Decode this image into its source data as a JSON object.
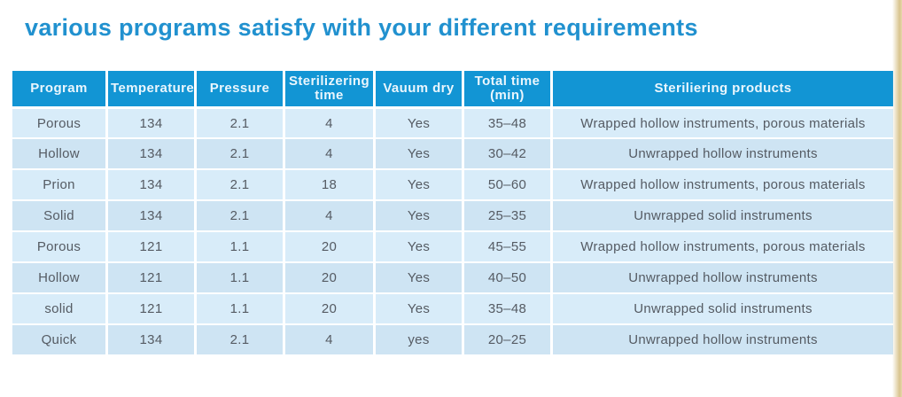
{
  "page": {
    "title": "various programs satisfy with your different requirements"
  },
  "colors": {
    "title_blue": "#2191cf",
    "header_bg": "#1295d4",
    "header_text": "#eaf6fd",
    "row_bg_light": "#d8ecf9",
    "row_bg_dark": "#cee4f3",
    "body_text": "#555b63",
    "separator": "#ffffff",
    "edge_strip_tan": "#d9c48e"
  },
  "table": {
    "columns": [
      {
        "key": "program",
        "label": "Program"
      },
      {
        "key": "temperature",
        "label": "Temperature"
      },
      {
        "key": "pressure",
        "label": "Pressure"
      },
      {
        "key": "sterilizing_time",
        "label": "Sterilizering time"
      },
      {
        "key": "vacuum_dry",
        "label": "Vauum dry"
      },
      {
        "key": "total_time",
        "label": "Total time (min)"
      },
      {
        "key": "products",
        "label": "Steriliering products"
      }
    ],
    "rows": [
      [
        "Porous",
        "134",
        "2.1",
        "4",
        "Yes",
        "35–48",
        "Wrapped hollow instruments, porous materials"
      ],
      [
        "Hollow",
        "134",
        "2.1",
        "4",
        "Yes",
        "30–42",
        "Unwrapped hollow instruments"
      ],
      [
        "Prion",
        "134",
        "2.1",
        "18",
        "Yes",
        "50–60",
        "Wrapped hollow instruments, porous materials"
      ],
      [
        "Solid",
        "134",
        "2.1",
        "4",
        "Yes",
        "25–35",
        "Unwrapped solid instruments"
      ],
      [
        "Porous",
        "121",
        "1.1",
        "20",
        "Yes",
        "45–55",
        "Wrapped hollow instruments, porous materials"
      ],
      [
        "Hollow",
        "121",
        "1.1",
        "20",
        "Yes",
        "40–50",
        "Unwrapped hollow instruments"
      ],
      [
        "solid",
        "121",
        "1.1",
        "20",
        "Yes",
        "35–48",
        "Unwrapped solid instruments"
      ],
      [
        "Quick",
        "134",
        "2.1",
        "4",
        "yes",
        "20–25",
        "Unwrapped hollow instruments"
      ]
    ]
  }
}
